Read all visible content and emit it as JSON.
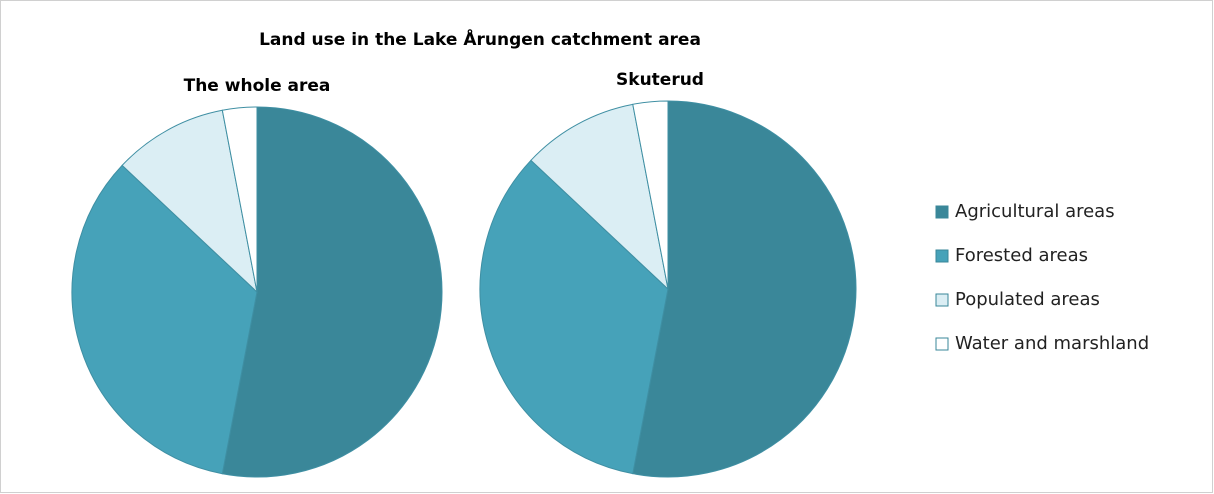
{
  "title": "Land use in the Lake Årungen catchment area",
  "chart_data": [
    {
      "type": "pie",
      "title": "The whole area",
      "categories": [
        "Agricultural areas",
        "Forested areas",
        "Populated areas",
        "Water and marshland"
      ],
      "values": [
        53,
        34,
        10,
        3
      ],
      "colors": [
        "#3a8799",
        "#46a2b9",
        "#dbeef4",
        "#ffffff"
      ]
    },
    {
      "type": "pie",
      "title": "Skuterud",
      "categories": [
        "Agricultural areas",
        "Forested areas",
        "Populated areas",
        "Water and marshland"
      ],
      "values": [
        53,
        34,
        10,
        3
      ],
      "colors": [
        "#3a8799",
        "#46a2b9",
        "#dbeef4",
        "#ffffff"
      ]
    }
  ]
}
